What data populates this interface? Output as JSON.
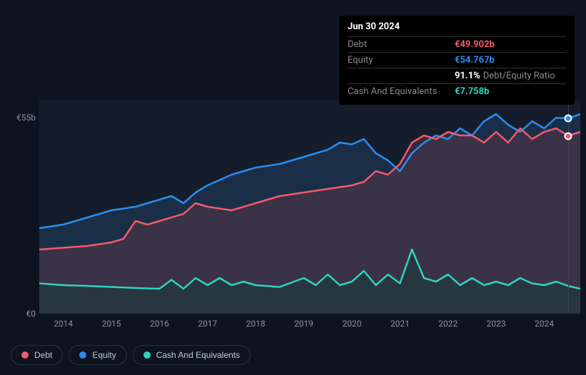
{
  "tooltip": {
    "title": "Jun 30 2024",
    "rows": [
      {
        "label": "Debt",
        "value": "€49.902b",
        "color": "#f25a6e"
      },
      {
        "label": "Equity",
        "value": "€54.767b",
        "color": "#2a8def"
      },
      {
        "label": "",
        "value": "91.1%",
        "extra": "Debt/Equity Ratio",
        "color": "#ffffff"
      },
      {
        "label": "Cash And Equivalents",
        "value": "€7.758b",
        "color": "#2dd4bf"
      }
    ]
  },
  "chart": {
    "type": "area",
    "background_color": "#151d2c",
    "page_background": "#0d1420",
    "grid_color": "#2a3244",
    "ylim": [
      0,
      60
    ],
    "y_ticks": [
      {
        "v": 0,
        "label": "€0"
      },
      {
        "v": 55,
        "label": "€55b"
      }
    ],
    "x_years": [
      2014,
      2015,
      2016,
      2017,
      2018,
      2019,
      2020,
      2021,
      2022,
      2023,
      2024
    ],
    "x_domain": [
      2013.5,
      2024.75
    ],
    "vline_at": 2024.5,
    "series": [
      {
        "name": "Equity",
        "color": "#2a8def",
        "fill": "#1f3a5a",
        "fill_opacity": 0.6,
        "width": 2.5,
        "end_dot": true,
        "points": [
          [
            2013.5,
            24
          ],
          [
            2014,
            25
          ],
          [
            2014.5,
            27
          ],
          [
            2015,
            29
          ],
          [
            2015.5,
            30
          ],
          [
            2016,
            32
          ],
          [
            2016.25,
            33
          ],
          [
            2016.5,
            31
          ],
          [
            2016.75,
            34
          ],
          [
            2017,
            36
          ],
          [
            2017.5,
            39
          ],
          [
            2018,
            41
          ],
          [
            2018.5,
            42
          ],
          [
            2019,
            44
          ],
          [
            2019.5,
            46
          ],
          [
            2019.75,
            48
          ],
          [
            2020,
            47.5
          ],
          [
            2020.25,
            49
          ],
          [
            2020.5,
            45
          ],
          [
            2020.75,
            43
          ],
          [
            2021,
            40
          ],
          [
            2021.25,
            45
          ],
          [
            2021.5,
            48
          ],
          [
            2021.75,
            50
          ],
          [
            2022,
            49
          ],
          [
            2022.25,
            52
          ],
          [
            2022.5,
            50
          ],
          [
            2022.75,
            54
          ],
          [
            2023,
            56
          ],
          [
            2023.25,
            53
          ],
          [
            2023.5,
            51
          ],
          [
            2023.75,
            54
          ],
          [
            2024,
            52
          ],
          [
            2024.25,
            55
          ],
          [
            2024.5,
            54.77
          ],
          [
            2024.75,
            56
          ]
        ]
      },
      {
        "name": "Debt",
        "color": "#f25a6e",
        "fill": "#5a3545",
        "fill_opacity": 0.5,
        "width": 2.5,
        "end_dot": true,
        "points": [
          [
            2013.5,
            18
          ],
          [
            2014,
            18.5
          ],
          [
            2014.5,
            19
          ],
          [
            2015,
            20
          ],
          [
            2015.25,
            21
          ],
          [
            2015.5,
            26
          ],
          [
            2015.75,
            25
          ],
          [
            2016,
            26
          ],
          [
            2016.5,
            28
          ],
          [
            2016.75,
            31
          ],
          [
            2017,
            30
          ],
          [
            2017.5,
            29
          ],
          [
            2018,
            31
          ],
          [
            2018.5,
            33
          ],
          [
            2019,
            34
          ],
          [
            2019.5,
            35
          ],
          [
            2020,
            36
          ],
          [
            2020.25,
            37
          ],
          [
            2020.5,
            40
          ],
          [
            2020.75,
            39
          ],
          [
            2021,
            42
          ],
          [
            2021.25,
            48
          ],
          [
            2021.5,
            50
          ],
          [
            2021.75,
            49
          ],
          [
            2022,
            51
          ],
          [
            2022.25,
            50
          ],
          [
            2022.5,
            50
          ],
          [
            2022.75,
            48
          ],
          [
            2023,
            51
          ],
          [
            2023.25,
            48
          ],
          [
            2023.5,
            52
          ],
          [
            2023.75,
            49
          ],
          [
            2024,
            51
          ],
          [
            2024.25,
            52
          ],
          [
            2024.5,
            49.9
          ],
          [
            2024.75,
            51
          ]
        ]
      },
      {
        "name": "Cash And Equivalents",
        "color": "#2dd4bf",
        "fill": "#1a3a3a",
        "fill_opacity": 0.55,
        "width": 2.5,
        "end_dot": false,
        "points": [
          [
            2013.5,
            8.5
          ],
          [
            2014,
            8
          ],
          [
            2014.5,
            7.8
          ],
          [
            2015,
            7.5
          ],
          [
            2015.5,
            7.2
          ],
          [
            2016,
            7
          ],
          [
            2016.25,
            9.5
          ],
          [
            2016.5,
            7
          ],
          [
            2016.75,
            10
          ],
          [
            2017,
            8
          ],
          [
            2017.25,
            10
          ],
          [
            2017.5,
            8
          ],
          [
            2017.75,
            9
          ],
          [
            2018,
            8
          ],
          [
            2018.5,
            7.5
          ],
          [
            2019,
            10
          ],
          [
            2019.25,
            8
          ],
          [
            2019.5,
            11
          ],
          [
            2019.75,
            8
          ],
          [
            2020,
            9
          ],
          [
            2020.25,
            12
          ],
          [
            2020.5,
            8
          ],
          [
            2020.75,
            11
          ],
          [
            2021,
            8.5
          ],
          [
            2021.25,
            18
          ],
          [
            2021.5,
            10
          ],
          [
            2021.75,
            9
          ],
          [
            2022,
            11
          ],
          [
            2022.25,
            8
          ],
          [
            2022.5,
            10
          ],
          [
            2022.75,
            8
          ],
          [
            2023,
            9
          ],
          [
            2023.25,
            8
          ],
          [
            2023.5,
            10
          ],
          [
            2023.75,
            8.5
          ],
          [
            2024,
            8
          ],
          [
            2024.25,
            9
          ],
          [
            2024.5,
            7.76
          ],
          [
            2024.75,
            7
          ]
        ]
      }
    ]
  },
  "legend": [
    {
      "label": "Debt",
      "color": "#f25a6e"
    },
    {
      "label": "Equity",
      "color": "#2a8def"
    },
    {
      "label": "Cash And Equivalents",
      "color": "#2dd4bf"
    }
  ]
}
